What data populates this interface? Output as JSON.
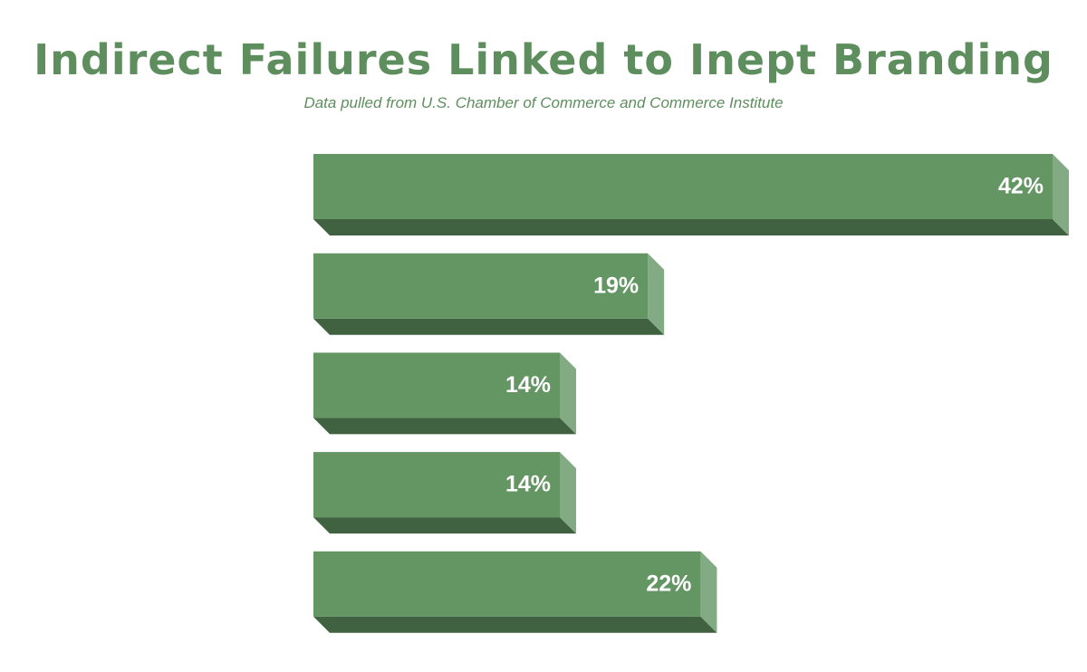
{
  "chart_data": {
    "type": "bar3d",
    "title": "Indirect Failures Linked to Inept Branding",
    "subtitle": "Data pulled from U.S. Chamber of Commerce and Commerce Institute",
    "values": [
      42,
      19,
      14,
      14,
      22
    ],
    "value_labels": [
      "42%",
      "19%",
      "14%",
      "14%",
      "22%"
    ],
    "color": "#649664"
  }
}
